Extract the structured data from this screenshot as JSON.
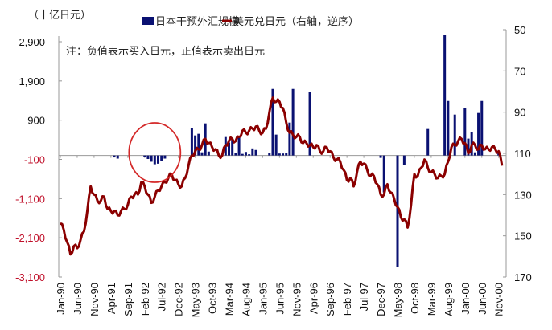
{
  "chart_data": {
    "type": "bar+line",
    "unit_label": "（十亿日元）",
    "note": "注：负值表示买入日元，正值表示卖出日元",
    "legend": [
      {
        "label": "日本干预外汇规模",
        "color": "#0a1172",
        "kind": "bar"
      },
      {
        "label": "美元兑日元（右轴，逆序）",
        "color": "#8b0000",
        "kind": "line"
      }
    ],
    "legend_placement": "top",
    "x_range": [
      "1990-01",
      "2000-12"
    ],
    "x_tick_labels": [
      "Jan-90",
      "Jun-90",
      "Nov-90",
      "Apr-91",
      "Sep-91",
      "Feb-92",
      "Jul-92",
      "Dec-92",
      "May-93",
      "Oct-93",
      "Mar-94",
      "Aug-94",
      "Jan-95",
      "Jun-95",
      "Nov-95",
      "Apr-96",
      "Sep-96",
      "Feb-97",
      "Jul-97",
      "Dec-97",
      "May-98",
      "Oct-98",
      "Mar-99",
      "Aug-99",
      "Jan-00",
      "Jun-00",
      "Nov-00"
    ],
    "left_axis": {
      "ylim": [
        -3100,
        2900
      ],
      "ticks": [
        2900,
        1900,
        900,
        -100,
        -1100,
        -2100,
        -3100
      ],
      "tick_labels": [
        "2,900",
        "1,900",
        "900",
        "-100",
        "-1,100",
        "-2,100",
        "-3,100"
      ],
      "positive_color": "#111111",
      "negative_color": "#c0102a"
    },
    "right_axis": {
      "ylim": [
        50,
        170
      ],
      "reversed": true,
      "ticks": [
        50,
        70,
        90,
        110,
        130,
        150,
        170
      ]
    },
    "grid": false,
    "intervention_bars": [
      {
        "month": "1991-05",
        "value": -50
      },
      {
        "month": "1991-06",
        "value": -80
      },
      {
        "month": "1992-02",
        "value": -40
      },
      {
        "month": "1992-03",
        "value": -90
      },
      {
        "month": "1992-04",
        "value": -160
      },
      {
        "month": "1992-05",
        "value": -225
      },
      {
        "month": "1992-06",
        "value": -210
      },
      {
        "month": "1992-07",
        "value": -150
      },
      {
        "month": "1992-08",
        "value": -80
      },
      {
        "month": "1993-04",
        "value": 695
      },
      {
        "month": "1993-05",
        "value": 511
      },
      {
        "month": "1993-06",
        "value": 552
      },
      {
        "month": "1993-07",
        "value": 80
      },
      {
        "month": "1993-08",
        "value": 818
      },
      {
        "month": "1993-09",
        "value": 100
      },
      {
        "month": "1994-02",
        "value": 470
      },
      {
        "month": "1994-03",
        "value": 327
      },
      {
        "month": "1994-04",
        "value": 429
      },
      {
        "month": "1994-05",
        "value": 60
      },
      {
        "month": "1994-06",
        "value": 491
      },
      {
        "month": "1994-07",
        "value": 40
      },
      {
        "month": "1994-08",
        "value": 90
      },
      {
        "month": "1994-09",
        "value": 30
      },
      {
        "month": "1994-10",
        "value": 180
      },
      {
        "month": "1994-11",
        "value": 140
      },
      {
        "month": "1995-03",
        "value": 60
      },
      {
        "month": "1995-04",
        "value": 1697
      },
      {
        "month": "1995-05",
        "value": 532
      },
      {
        "month": "1995-06",
        "value": 50
      },
      {
        "month": "1995-07",
        "value": 50
      },
      {
        "month": "1995-08",
        "value": 60
      },
      {
        "month": "1995-09",
        "value": 838
      },
      {
        "month": "1995-10",
        "value": 1697
      },
      {
        "month": "1996-03",
        "value": 1615
      },
      {
        "month": "1997-12",
        "value": -61
      },
      {
        "month": "1998-01",
        "value": -941
      },
      {
        "month": "1998-05",
        "value": -2842
      },
      {
        "month": "1998-07",
        "value": -245
      },
      {
        "month": "1999-02",
        "value": 675
      },
      {
        "month": "1999-07",
        "value": 3067
      },
      {
        "month": "1999-08",
        "value": 1390
      },
      {
        "month": "1999-10",
        "value": 1043
      },
      {
        "month": "2000-01",
        "value": 1207
      },
      {
        "month": "2000-02",
        "value": 430
      },
      {
        "month": "2000-03",
        "value": 593
      },
      {
        "month": "2000-04",
        "value": 80
      },
      {
        "month": "2000-05",
        "value": 1084
      },
      {
        "month": "2000-06",
        "value": 1390
      },
      {
        "month": "2000-11",
        "value": 60
      }
    ],
    "usdjpy_monthly": [
      144,
      147,
      153,
      159,
      155,
      156,
      152,
      148,
      138,
      126,
      130,
      133,
      133,
      131,
      137,
      138,
      138,
      140,
      138,
      137,
      135,
      131,
      130,
      130,
      124,
      126,
      130,
      134,
      131,
      128,
      126,
      124,
      122,
      120,
      123,
      125,
      126,
      122,
      116,
      111,
      109,
      108,
      106,
      103,
      105,
      107,
      108,
      111,
      111,
      106,
      104,
      103,
      104,
      102,
      99,
      100,
      99,
      98,
      97,
      99,
      100,
      98,
      90,
      83,
      85,
      85,
      88,
      95,
      100,
      101,
      102,
      102,
      105,
      105,
      106,
      107,
      106,
      109,
      109,
      107,
      109,
      112,
      113,
      114,
      118,
      123,
      122,
      126,
      119,
      114,
      115,
      118,
      121,
      121,
      125,
      130,
      130,
      125,
      129,
      132,
      136,
      141,
      142,
      146,
      135,
      120,
      121,
      117,
      113,
      117,
      119,
      120,
      122,
      121,
      120,
      114,
      107,
      106,
      104,
      103,
      105,
      110,
      106,
      106,
      108,
      106,
      108,
      108,
      107,
      108,
      109,
      116
    ],
    "annotation": {
      "shape": "circle",
      "color": "#d42a2a",
      "around": [
        "1992-02",
        "1992-08"
      ]
    }
  }
}
